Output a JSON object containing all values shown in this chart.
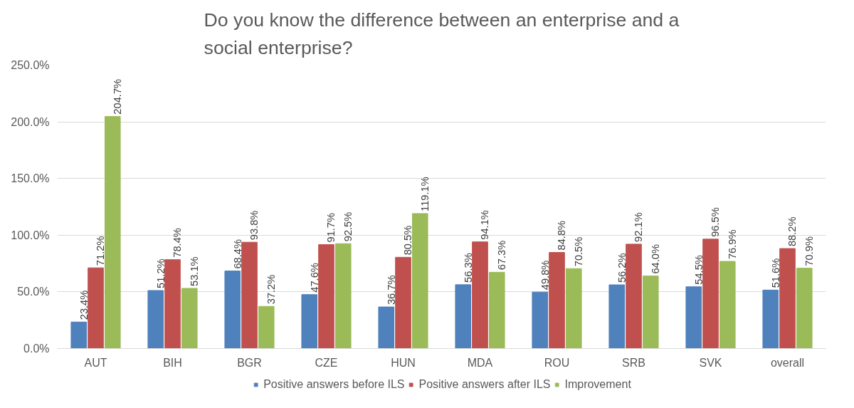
{
  "chart_data": {
    "type": "bar",
    "title": "Do you know the difference between an enterprise and a social enterprise?",
    "categories": [
      "AUT",
      "BIH",
      "BGR",
      "CZE",
      "HUN",
      "MDA",
      "ROU",
      "SRB",
      "SVK",
      "overall"
    ],
    "series": [
      {
        "name": "Positive answers before ILS",
        "color": "#4f81bd",
        "values": [
          23.4,
          51.2,
          68.4,
          47.6,
          36.7,
          56.3,
          49.8,
          56.2,
          54.5,
          51.6
        ],
        "value_labels": [
          "23.4%",
          "51.2%",
          "68.4%",
          "47.6%",
          "36.7%",
          "56.3%",
          "49.8%",
          "56.2%",
          "54.5%",
          "51.6%"
        ]
      },
      {
        "name": "Positive answers after ILS",
        "color": "#c0504d",
        "values": [
          71.2,
          78.4,
          93.8,
          91.7,
          80.5,
          94.1,
          84.8,
          92.1,
          96.5,
          88.2
        ],
        "value_labels": [
          "71.2%",
          "78.4%",
          "93.8%",
          "91.7%",
          "80.5%",
          "94.1%",
          "84.8%",
          "92.1%",
          "96.5%",
          "88.2%"
        ]
      },
      {
        "name": "Improvement",
        "color": "#9bbb59",
        "values": [
          204.7,
          53.1,
          37.2,
          92.5,
          119.1,
          67.3,
          70.5,
          64.0,
          76.9,
          70.9
        ],
        "value_labels": [
          "204.7%",
          "53.1%",
          "37.2%",
          "92.5%",
          "119.1%",
          "67.3%",
          "70.5%",
          "64.0%",
          "76.9%",
          "70.9%"
        ]
      }
    ],
    "ylim": [
      0,
      250
    ],
    "yticks": [
      {
        "value": 0,
        "label": "0.0%"
      },
      {
        "value": 50,
        "label": "50.0%"
      },
      {
        "value": 100,
        "label": "100.0%"
      },
      {
        "value": 150,
        "label": "150.0%"
      },
      {
        "value": 200,
        "label": "200.0%"
      },
      {
        "value": 250,
        "label": "250.0%"
      }
    ],
    "grid": "y",
    "legend": "bottom"
  }
}
